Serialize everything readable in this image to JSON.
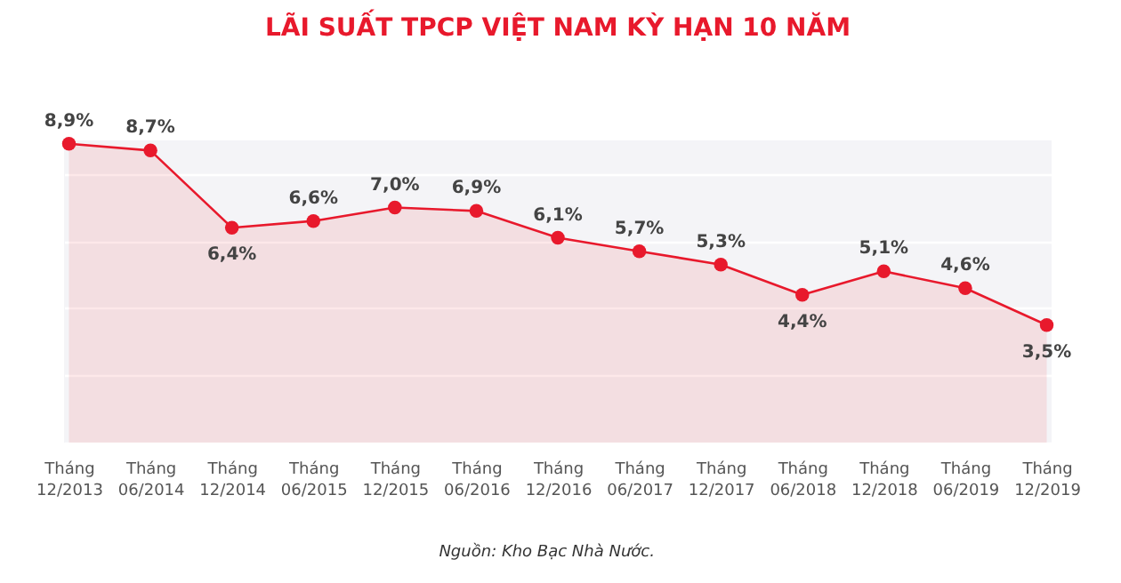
{
  "chart_data": {
    "type": "area",
    "title": "LÃI SUẤT TPCP VIỆT NAM KỲ HẠN 10 NĂM",
    "categories": [
      "Tháng 12/2013",
      "Tháng 06/2014",
      "Tháng 12/2014",
      "Tháng 06/2015",
      "Tháng 12/2015",
      "Tháng 06/2016",
      "Tháng 12/2016",
      "Tháng 06/2017",
      "Tháng 12/2017",
      "Tháng 06/2018",
      "Tháng 12/2018",
      "Tháng 06/2019",
      "Tháng 12/2019"
    ],
    "series": [
      {
        "color": "#e8192c",
        "values": [
          8.9,
          8.7,
          6.4,
          6.6,
          7.0,
          6.9,
          6.1,
          5.7,
          5.3,
          4.4,
          5.1,
          4.6,
          3.5
        ],
        "value_labels": [
          "8,9%",
          "8,7%",
          "6,4%",
          "6,6%",
          "7,0%",
          "6,9%",
          "6,1%",
          "5,7%",
          "5,3%",
          "4,4%",
          "5,1%",
          "4,6%",
          "3,5%"
        ]
      }
    ],
    "grid": "y",
    "marker": "circle",
    "line_style": "solid",
    "tick_labels": "x",
    "annotations": [
      "Nguồn: Kho Bạc Nhà Nước."
    ]
  }
}
